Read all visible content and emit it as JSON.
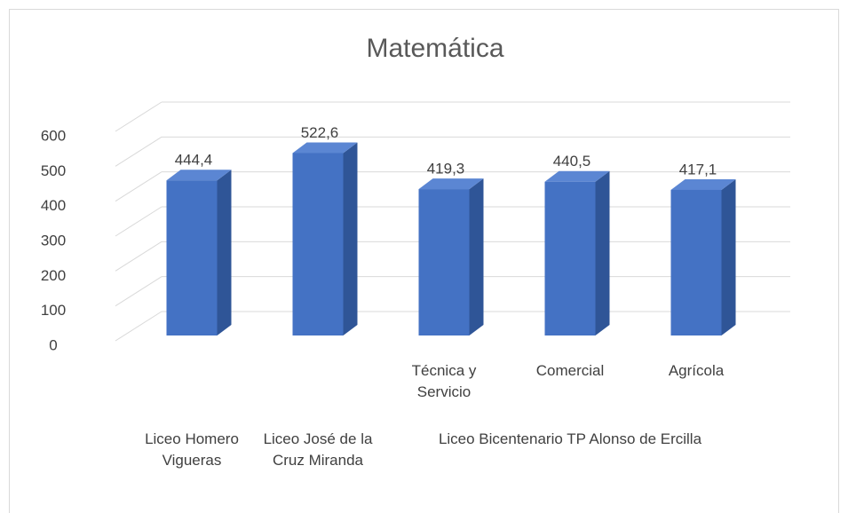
{
  "chart_data": {
    "type": "bar3d",
    "title": "Matemática",
    "groups": [
      {
        "name": "Liceo Homero Vigueras",
        "categories": [
          null
        ]
      },
      {
        "name": "Liceo José de la Cruz Miranda",
        "categories": [
          null
        ]
      },
      {
        "name": "Liceo Bicentenario TP Alonso de Ercilla",
        "categories": [
          "Técnica y Servicio",
          "Comercial",
          "Agrícola"
        ]
      }
    ],
    "values": [
      444.4,
      522.6,
      419.3,
      440.5,
      417.1
    ],
    "value_labels": [
      "444,4",
      "522,6",
      "419,3",
      "440,5",
      "417,1"
    ],
    "color": "#4472c4",
    "ylim": [
      0,
      600
    ],
    "yticks": [
      0,
      100,
      200,
      300,
      400,
      500,
      600
    ],
    "grid": true
  }
}
